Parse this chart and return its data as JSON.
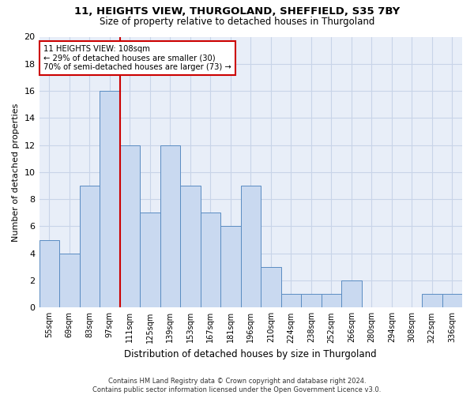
{
  "title_line1": "11, HEIGHTS VIEW, THURGOLAND, SHEFFIELD, S35 7BY",
  "title_line2": "Size of property relative to detached houses in Thurgoland",
  "xlabel": "Distribution of detached houses by size in Thurgoland",
  "ylabel": "Number of detached properties",
  "footnote": "Contains HM Land Registry data © Crown copyright and database right 2024.\nContains public sector information licensed under the Open Government Licence v3.0.",
  "categories": [
    "55sqm",
    "69sqm",
    "83sqm",
    "97sqm",
    "111sqm",
    "125sqm",
    "139sqm",
    "153sqm",
    "167sqm",
    "181sqm",
    "196sqm",
    "210sqm",
    "224sqm",
    "238sqm",
    "252sqm",
    "266sqm",
    "280sqm",
    "294sqm",
    "308sqm",
    "322sqm",
    "336sqm"
  ],
  "values": [
    5,
    4,
    9,
    16,
    12,
    7,
    12,
    9,
    7,
    6,
    9,
    3,
    1,
    1,
    1,
    2,
    0,
    0,
    0,
    1,
    1
  ],
  "bar_color": "#c9d9f0",
  "bar_edge_color": "#5a8cc2",
  "vline_x": 3.5,
  "annotation_text_line1": "11 HEIGHTS VIEW: 108sqm",
  "annotation_text_line2": "← 29% of detached houses are smaller (30)",
  "annotation_text_line3": "70% of semi-detached houses are larger (73) →",
  "annotation_box_color": "#cc0000",
  "vline_color": "#cc0000",
  "grid_color": "#c8d4e8",
  "background_color": "#e8eef8",
  "ylim": [
    0,
    20
  ],
  "yticks": [
    0,
    2,
    4,
    6,
    8,
    10,
    12,
    14,
    16,
    18,
    20
  ]
}
